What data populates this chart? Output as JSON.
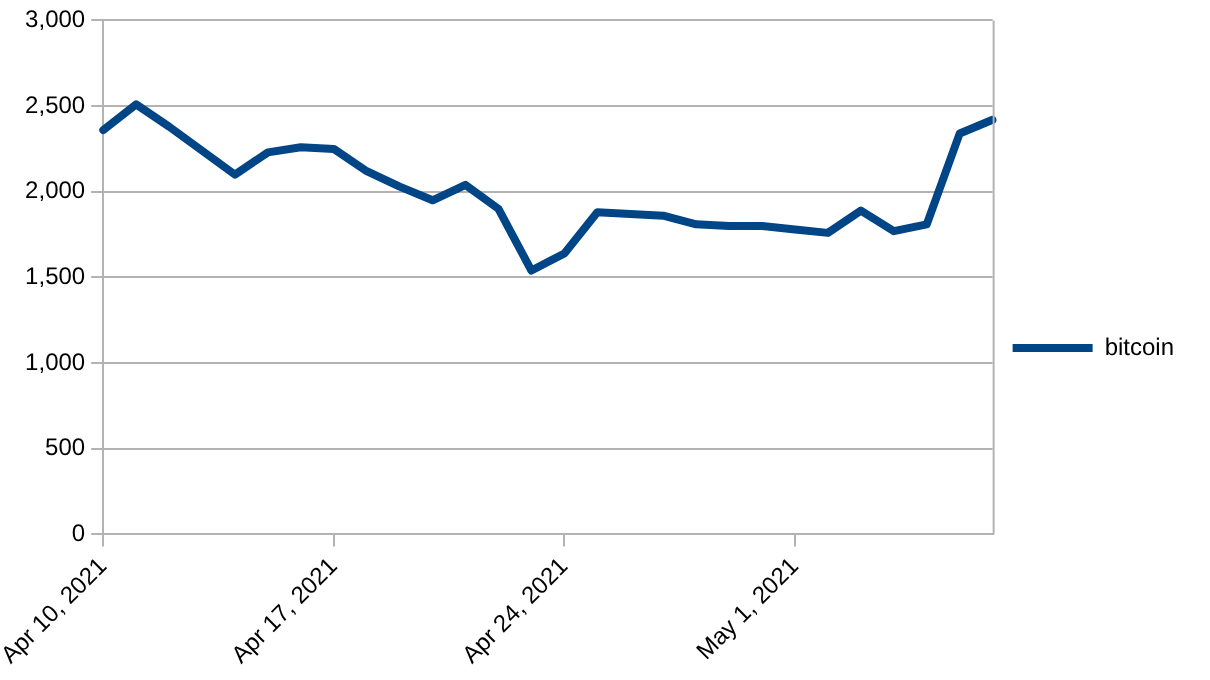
{
  "chart_data": {
    "type": "line",
    "categories": [
      "Apr 10, 2021",
      null,
      null,
      null,
      null,
      null,
      null,
      "Apr 17, 2021",
      null,
      null,
      null,
      null,
      null,
      null,
      "Apr 24, 2021",
      null,
      null,
      null,
      null,
      null,
      null,
      "May 1, 2021",
      null,
      null,
      null,
      null,
      null,
      null
    ],
    "series": [
      {
        "name": "bitcoin",
        "color": "#004586",
        "values": [
          2360,
          2510,
          2380,
          2240,
          2100,
          2230,
          2260,
          2250,
          2120,
          2030,
          1950,
          2040,
          1900,
          1540,
          1640,
          1880,
          1870,
          1860,
          1810,
          1800,
          1800,
          1780,
          1760,
          1890,
          1770,
          1810,
          2340,
          2420
        ]
      }
    ],
    "ylim": [
      0,
      3000
    ],
    "yticks": [
      {
        "value": 0,
        "label": "0"
      },
      {
        "value": 500,
        "label": "500"
      },
      {
        "value": 1000,
        "label": "1,000"
      },
      {
        "value": 1500,
        "label": "1,500"
      },
      {
        "value": 2000,
        "label": "2,000"
      },
      {
        "value": 2500,
        "label": "2,500"
      },
      {
        "value": 3000,
        "label": "3,000"
      }
    ],
    "grid": "y",
    "legend": "right",
    "marker": "none",
    "line_style": "solid"
  }
}
